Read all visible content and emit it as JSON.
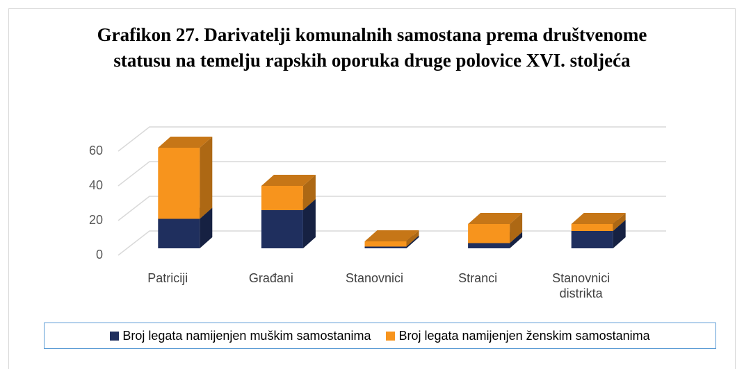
{
  "chart_data": {
    "type": "bar3d_stacked",
    "title": "Grafikon 27. Darivatelji komunalnih samostana prema društvenome statusu na temelju rapskih oporuka druge polovice XVI. stoljeća",
    "categories": [
      "Patriciji",
      "Građani",
      "Stanovnici",
      "Stranci",
      "Stanovnici distrikta"
    ],
    "series": [
      {
        "name": "Broj legata namijenjen muškim samostanima",
        "color": "#1f2f5e",
        "values": [
          17,
          22,
          1,
          3,
          10
        ]
      },
      {
        "name": "Broj legata namijenjen ženskim samostanima",
        "color": "#f7941d",
        "values": [
          41,
          14,
          3,
          11,
          4
        ]
      }
    ],
    "ylim": [
      0,
      60
    ],
    "yticks": [
      0,
      20,
      40,
      60
    ],
    "grid": true,
    "legend": "bottom"
  }
}
